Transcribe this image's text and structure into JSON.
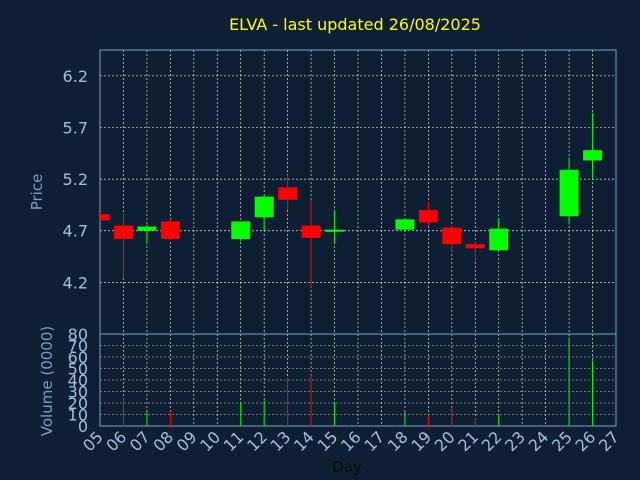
{
  "colors": {
    "background": "#0e1f33",
    "up": "#00ff00",
    "down": "#ff0000",
    "grid": "#ffffff",
    "frame": "#7f9fc2",
    "title": "#ffff00",
    "tick": "#a3bfdc"
  },
  "chart_data": {
    "type": "candlestick",
    "title": "ELVA - last updated 26/08/2025",
    "xlabel": "Day",
    "price_panel": {
      "ylabel": "Price",
      "ylim": [
        3.7,
        6.45
      ],
      "yticks": [
        4.2,
        4.7,
        5.2,
        5.7,
        6.2
      ],
      "ytick_labels": [
        "4.2",
        "4.7",
        "5.2",
        "5.7",
        "6.2"
      ],
      "grid": true
    },
    "volume_panel": {
      "ylabel": "Volume (0000)",
      "ylim": [
        0,
        80
      ],
      "yticks": [
        0,
        10,
        20,
        30,
        40,
        50,
        60,
        70,
        80
      ],
      "ytick_labels": [
        "0",
        "10",
        "20",
        "30",
        "40",
        "50",
        "60",
        "70",
        "80"
      ],
      "grid": true
    },
    "x_ticks": [
      5,
      6,
      7,
      8,
      9,
      10,
      11,
      12,
      13,
      14,
      15,
      16,
      17,
      18,
      19,
      20,
      21,
      22,
      23,
      24,
      25,
      26,
      27
    ],
    "x_tick_labels": [
      "05",
      "06",
      "07",
      "08",
      "09",
      "10",
      "11",
      "12",
      "13",
      "14",
      "15",
      "16",
      "17",
      "18",
      "19",
      "20",
      "21",
      "22",
      "23",
      "24",
      "25",
      "26",
      "27"
    ],
    "x_range": [
      5,
      27
    ],
    "candles": [
      {
        "day": 5,
        "open": 4.86,
        "high": 4.88,
        "low": 4.8,
        "close": 4.8,
        "volume": 0
      },
      {
        "day": 6,
        "open": 4.75,
        "high": 4.87,
        "low": 4.24,
        "close": 4.62,
        "volume": 24
      },
      {
        "day": 7,
        "open": 4.7,
        "high": 4.76,
        "low": 4.58,
        "close": 4.74,
        "volume": 12
      },
      {
        "day": 8,
        "open": 4.79,
        "high": 4.81,
        "low": 4.61,
        "close": 4.62,
        "volume": 13
      },
      {
        "day": 11,
        "open": 4.62,
        "high": 4.79,
        "low": 4.6,
        "close": 4.79,
        "volume": 21
      },
      {
        "day": 12,
        "open": 4.83,
        "high": 5.04,
        "low": 4.7,
        "close": 5.03,
        "volume": 22
      },
      {
        "day": 13,
        "open": 5.12,
        "high": 5.24,
        "low": 4.9,
        "close": 5.0,
        "volume": 42
      },
      {
        "day": 14,
        "open": 4.75,
        "high": 5.0,
        "low": 4.15,
        "close": 4.63,
        "volume": 44
      },
      {
        "day": 15,
        "open": 4.69,
        "high": 4.89,
        "low": 4.57,
        "close": 4.71,
        "volume": 20
      },
      {
        "day": 18,
        "open": 4.71,
        "high": 4.82,
        "low": 4.7,
        "close": 4.81,
        "volume": 12
      },
      {
        "day": 19,
        "open": 4.9,
        "high": 4.98,
        "low": 4.75,
        "close": 4.78,
        "volume": 10
      },
      {
        "day": 20,
        "open": 4.73,
        "high": 4.74,
        "low": 4.49,
        "close": 4.57,
        "volume": 16
      },
      {
        "day": 21,
        "open": 4.57,
        "high": 4.59,
        "low": 4.4,
        "close": 4.53,
        "volume": 7
      },
      {
        "day": 22,
        "open": 4.51,
        "high": 4.82,
        "low": 4.51,
        "close": 4.72,
        "volume": 9
      },
      {
        "day": 25,
        "open": 4.84,
        "high": 5.41,
        "low": 4.76,
        "close": 5.29,
        "volume": 77
      },
      {
        "day": 26,
        "open": 5.38,
        "high": 5.84,
        "low": 5.2,
        "close": 5.48,
        "volume": 57
      }
    ]
  }
}
